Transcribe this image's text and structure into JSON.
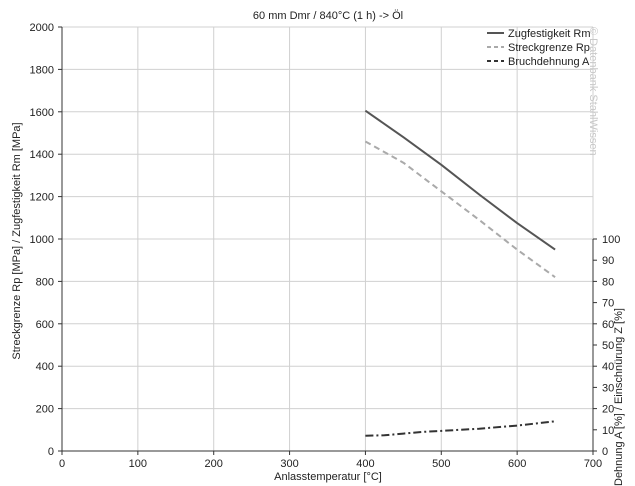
{
  "chart_data": {
    "type": "line",
    "title": "60 mm Dmr / 840°C (1 h) -> Öl",
    "xlabel": "Anlasstemperatur [°C]",
    "ylabel": "Streckgrenze Rp [MPa] / Zugfestigkeit Rm [MPa]",
    "y2label": "Dehnung A [%] / Einschnürung Z [%]",
    "xlim": [
      0,
      700
    ],
    "ylim": [
      0,
      2000
    ],
    "y2lim": [
      0,
      100
    ],
    "x_ticks": [
      0,
      100,
      200,
      300,
      400,
      500,
      600,
      700
    ],
    "y_ticks": [
      0,
      200,
      400,
      600,
      800,
      1000,
      1200,
      1400,
      1600,
      1800,
      2000
    ],
    "y2_ticks": [
      0,
      10,
      20,
      30,
      40,
      50,
      60,
      70,
      80,
      90,
      100
    ],
    "grid": true,
    "legend_position": "top-right",
    "watermark": "© Datenbank StahlWissen",
    "colors": {
      "rm": "#555555",
      "rp": "#aaaaaa",
      "a": "#333333",
      "grid": "#d0d0d0"
    },
    "series": [
      {
        "name": "Zugfestigkeit Rm",
        "axis": "left",
        "style": "solid",
        "x": [
          400,
          450,
          500,
          550,
          600,
          650
        ],
        "y": [
          1605,
          1480,
          1350,
          1210,
          1075,
          950
        ]
      },
      {
        "name": "Streckgrenze Rp",
        "axis": "left",
        "style": "dashed",
        "x": [
          400,
          450,
          500,
          550,
          600,
          650
        ],
        "y": [
          1460,
          1360,
          1225,
          1090,
          950,
          820
        ]
      },
      {
        "name": "Bruchdehnung A",
        "axis": "right",
        "style": "dashdot",
        "x": [
          400,
          425,
          450,
          475,
          500,
          550,
          600,
          650
        ],
        "y": [
          7.2,
          7.4,
          8.2,
          9.0,
          9.5,
          10.5,
          12.0,
          14.0
        ]
      }
    ]
  }
}
